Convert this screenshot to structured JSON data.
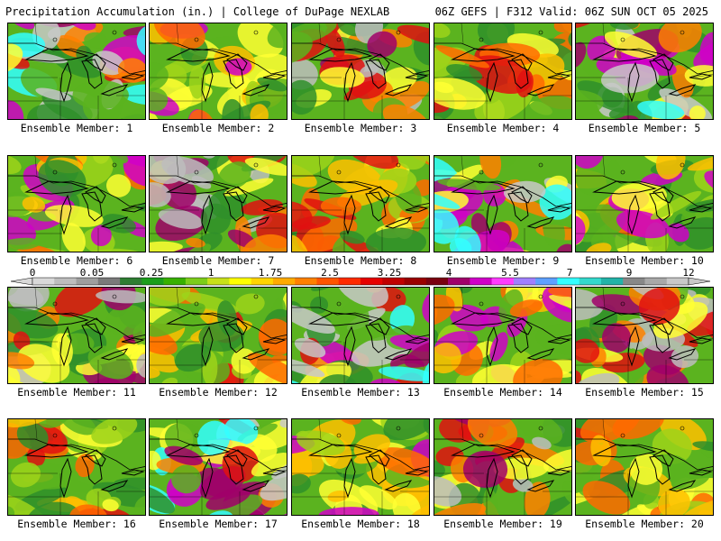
{
  "header": {
    "left": "Precipitation Accumulation (in.) | College of DuPage NEXLAB",
    "right": "06Z GEFS | F312 Valid: 06Z SUN OCT 05 2025"
  },
  "members": [
    {
      "label": "Ensemble Member: 1"
    },
    {
      "label": "Ensemble Member: 2"
    },
    {
      "label": "Ensemble Member: 3"
    },
    {
      "label": "Ensemble Member: 4"
    },
    {
      "label": "Ensemble Member: 5"
    },
    {
      "label": "Ensemble Member: 6"
    },
    {
      "label": "Ensemble Member: 7"
    },
    {
      "label": "Ensemble Member: 8"
    },
    {
      "label": "Ensemble Member: 9"
    },
    {
      "label": "Ensemble Member: 10"
    },
    {
      "label": "Ensemble Member: 11"
    },
    {
      "label": "Ensemble Member: 12"
    },
    {
      "label": "Ensemble Member: 13"
    },
    {
      "label": "Ensemble Member: 14"
    },
    {
      "label": "Ensemble Member: 15"
    },
    {
      "label": "Ensemble Member: 16"
    },
    {
      "label": "Ensemble Member: 17"
    },
    {
      "label": "Ensemble Member: 18"
    },
    {
      "label": "Ensemble Member: 19"
    },
    {
      "label": "Ensemble Member: 20"
    }
  ],
  "colorbar": {
    "labels": [
      "0",
      "0.05",
      "0.25",
      "1",
      "1.75",
      "2.5",
      "3.25",
      "4",
      "5.5",
      "7",
      "9",
      "12"
    ],
    "colors": [
      "#d9d9d9",
      "#bdbdbd",
      "#9e9e9e",
      "#7a7a7a",
      "#2e7d32",
      "#1b9e1b",
      "#38b000",
      "#7ccd1a",
      "#c8e01a",
      "#ffff00",
      "#ffd400",
      "#ffaa00",
      "#ff8000",
      "#ff5500",
      "#ff2a00",
      "#e60000",
      "#c00000",
      "#9a0000",
      "#7a0010",
      "#a0006a",
      "#d000c8",
      "#ff3cff",
      "#a080ff",
      "#5ea0ff",
      "#33ffff",
      "#33d9cc",
      "#22b3a8",
      "#888888",
      "#a8a8a8",
      "#c8c8c8"
    ]
  }
}
